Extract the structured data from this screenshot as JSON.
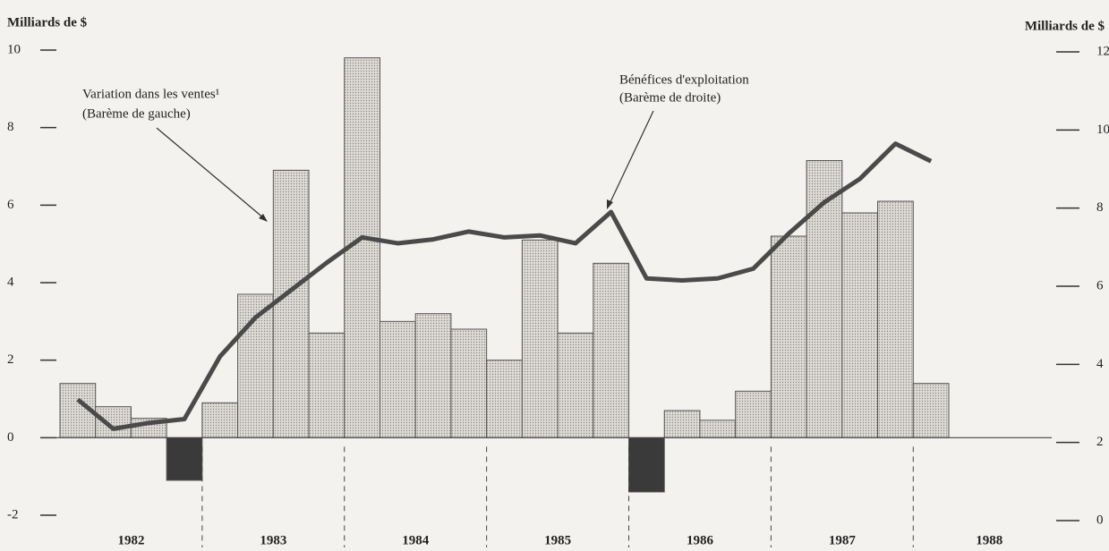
{
  "chart_data": {
    "type": "bar_line",
    "y_label": "Milliards de $",
    "y2_label": "Milliards de $",
    "categories": [
      null,
      null,
      null,
      null,
      null,
      null,
      null,
      null,
      null,
      null,
      null,
      null,
      null,
      null,
      null,
      null,
      null,
      null,
      null,
      null,
      null,
      null,
      null,
      null,
      null
    ],
    "year_labels": [
      "1982",
      "1983",
      "1984",
      "1985",
      "1986",
      "1987",
      "1988"
    ],
    "ylim": [
      -2,
      10
    ],
    "yticks": [
      -2,
      0,
      2,
      4,
      6,
      8,
      10
    ],
    "y2lim": [
      0,
      12
    ],
    "y2ticks": [
      0,
      2,
      4,
      6,
      8,
      10,
      12
    ],
    "series": [
      {
        "type": "bar",
        "color": "#d9d6d0",
        "negative_color": "#3a3a3a",
        "values": [
          1.4,
          0.8,
          0.5,
          -1.1,
          0.9,
          3.7,
          6.9,
          2.7,
          9.8,
          3.0,
          3.2,
          2.8,
          2.0,
          5.1,
          2.7,
          4.5,
          -1.4,
          0.7,
          0.45,
          1.2,
          5.2,
          7.15,
          5.8,
          6.1,
          1.4
        ]
      },
      {
        "type": "line",
        "axis": "y2",
        "color": "#4a4a4a",
        "values": [
          3.1,
          2.35,
          2.5,
          2.6,
          4.2,
          5.2,
          5.9,
          6.6,
          7.25,
          7.1,
          7.2,
          7.4,
          7.25,
          7.3,
          7.1,
          7.9,
          6.2,
          6.15,
          6.2,
          6.45,
          7.35,
          8.15,
          8.75,
          9.65,
          9.2
        ]
      }
    ],
    "annotations": [
      {
        "lines": [
          "Variation dans les ventes¹",
          "(Barème de gauche)"
        ]
      },
      {
        "lines": [
          "Bénéfices d'exploitation",
          "(Barème de droite)"
        ]
      }
    ]
  }
}
